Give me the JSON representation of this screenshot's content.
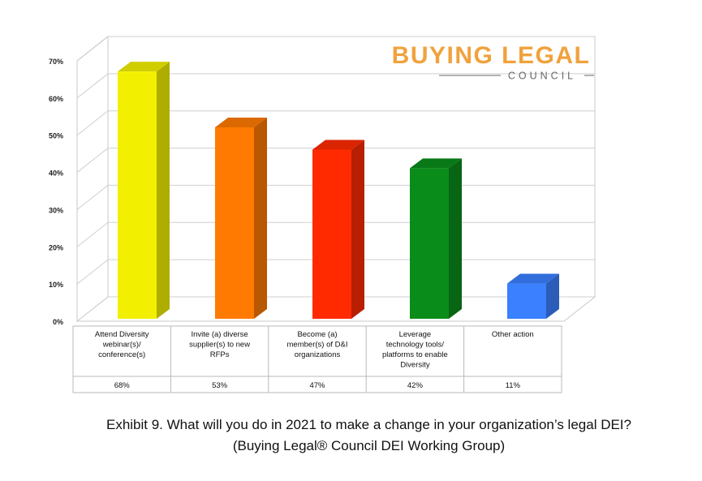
{
  "chart_data": {
    "type": "bar",
    "categories": [
      [
        "Attend Diversity",
        "webinar(s)/",
        "conference(s)"
      ],
      [
        "Invite (a) diverse",
        "supplier(s) to new",
        "RFPs"
      ],
      [
        "Become (a)",
        "member(s) of D&I",
        "organizations"
      ],
      [
        "Leverage",
        "technology tools/",
        "platforms to enable",
        "Diversity"
      ],
      [
        "Other action"
      ]
    ],
    "values": [
      68,
      53,
      47,
      42,
      11
    ],
    "value_labels": [
      "68%",
      "53%",
      "47%",
      "42%",
      "11%"
    ],
    "colors": [
      "#f2f000",
      "#ff7a00",
      "#ff2a00",
      "#0a8c1a",
      "#3a80ff"
    ],
    "yticks": [
      "0%",
      "10%",
      "20%",
      "30%",
      "40%",
      "50%",
      "60%",
      "70%"
    ],
    "ylim": [
      0,
      70
    ],
    "grid": true,
    "style": "3d-bars-with-data-table"
  },
  "logo": {
    "main": "BUYING LEGAL",
    "sub": "COUNCIL"
  },
  "caption": {
    "line1": "Exhibit 9. What will you do in 2021 to make a change in your organization’s legal DEI?",
    "line2": "(Buying Legal® Council DEI Working Group)"
  }
}
